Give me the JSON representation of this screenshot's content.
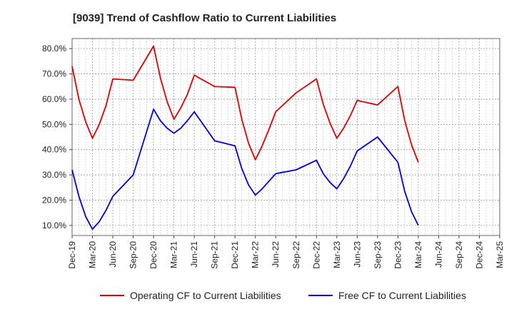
{
  "chart_data": {
    "type": "line",
    "title": "[9039]  Trend of Cashflow Ratio to Current Liabilities",
    "xlabel": "",
    "ylabel": "",
    "x_ticks": [
      "Dec-19",
      "Mar-20",
      "Jun-20",
      "Sep-20",
      "Dec-20",
      "Mar-21",
      "Jun-21",
      "Sep-21",
      "Dec-21",
      "Mar-22",
      "Jun-22",
      "Sep-22",
      "Dec-22",
      "Mar-23",
      "Jun-23",
      "Sep-23",
      "Dec-23",
      "Mar-24",
      "Jun-24",
      "Sep-24",
      "Dec-24",
      "Mar-25"
    ],
    "y_ticks": [
      "10.0%",
      "20.0%",
      "30.0%",
      "40.0%",
      "50.0%",
      "60.0%",
      "70.0%",
      "80.0%"
    ],
    "ylim": [
      6,
      84
    ],
    "grid": true,
    "legend_position": "bottom",
    "series": [
      {
        "name": "Operating CF to Current Liabilities",
        "color": "#e00000",
        "points": [
          [
            0,
            73.0
          ],
          [
            1,
            60.0
          ],
          [
            2,
            51.0
          ],
          [
            3,
            44.5
          ],
          [
            4,
            50.0
          ],
          [
            5,
            57.5
          ],
          [
            6,
            68.0
          ],
          [
            9,
            67.5
          ],
          [
            12,
            81.0
          ],
          [
            13,
            68.5
          ],
          [
            14,
            59.0
          ],
          [
            15,
            52.0
          ],
          [
            16,
            56.5
          ],
          [
            17,
            62.0
          ],
          [
            18,
            69.5
          ],
          [
            21,
            65.0
          ],
          [
            24,
            64.7
          ],
          [
            25,
            52.0
          ],
          [
            26,
            42.5
          ],
          [
            27,
            36.0
          ],
          [
            28,
            41.5
          ],
          [
            29,
            48.0
          ],
          [
            30,
            55.0
          ],
          [
            33,
            62.5
          ],
          [
            36,
            68.0
          ],
          [
            37,
            58.0
          ],
          [
            38,
            50.5
          ],
          [
            39,
            44.5
          ],
          [
            40,
            48.5
          ],
          [
            41,
            53.5
          ],
          [
            42,
            59.5
          ],
          [
            45,
            57.7
          ],
          [
            48,
            65.0
          ],
          [
            49,
            51.5
          ],
          [
            50,
            42.0
          ],
          [
            51,
            35.0
          ]
        ]
      },
      {
        "name": "Free CF to Current Liabilities",
        "color": "#0000dd",
        "points": [
          [
            0,
            32.0
          ],
          [
            1,
            21.5
          ],
          [
            2,
            13.5
          ],
          [
            3,
            8.5
          ],
          [
            4,
            11.5
          ],
          [
            5,
            16.0
          ],
          [
            6,
            21.5
          ],
          [
            9,
            30.0
          ],
          [
            12,
            56.0
          ],
          [
            13,
            51.5
          ],
          [
            14,
            48.5
          ],
          [
            15,
            46.5
          ],
          [
            16,
            48.5
          ],
          [
            17,
            51.5
          ],
          [
            18,
            55.0
          ],
          [
            21,
            43.5
          ],
          [
            24,
            41.5
          ],
          [
            25,
            32.5
          ],
          [
            26,
            26.0
          ],
          [
            27,
            22.0
          ],
          [
            28,
            24.5
          ],
          [
            29,
            27.5
          ],
          [
            30,
            30.5
          ],
          [
            33,
            32.0
          ],
          [
            36,
            35.8
          ],
          [
            37,
            30.5
          ],
          [
            38,
            27.0
          ],
          [
            39,
            24.5
          ],
          [
            40,
            28.5
          ],
          [
            41,
            33.5
          ],
          [
            42,
            39.5
          ],
          [
            45,
            45.0
          ],
          [
            48,
            35.0
          ],
          [
            49,
            23.5
          ],
          [
            50,
            15.5
          ],
          [
            51,
            10.0
          ]
        ]
      }
    ]
  }
}
